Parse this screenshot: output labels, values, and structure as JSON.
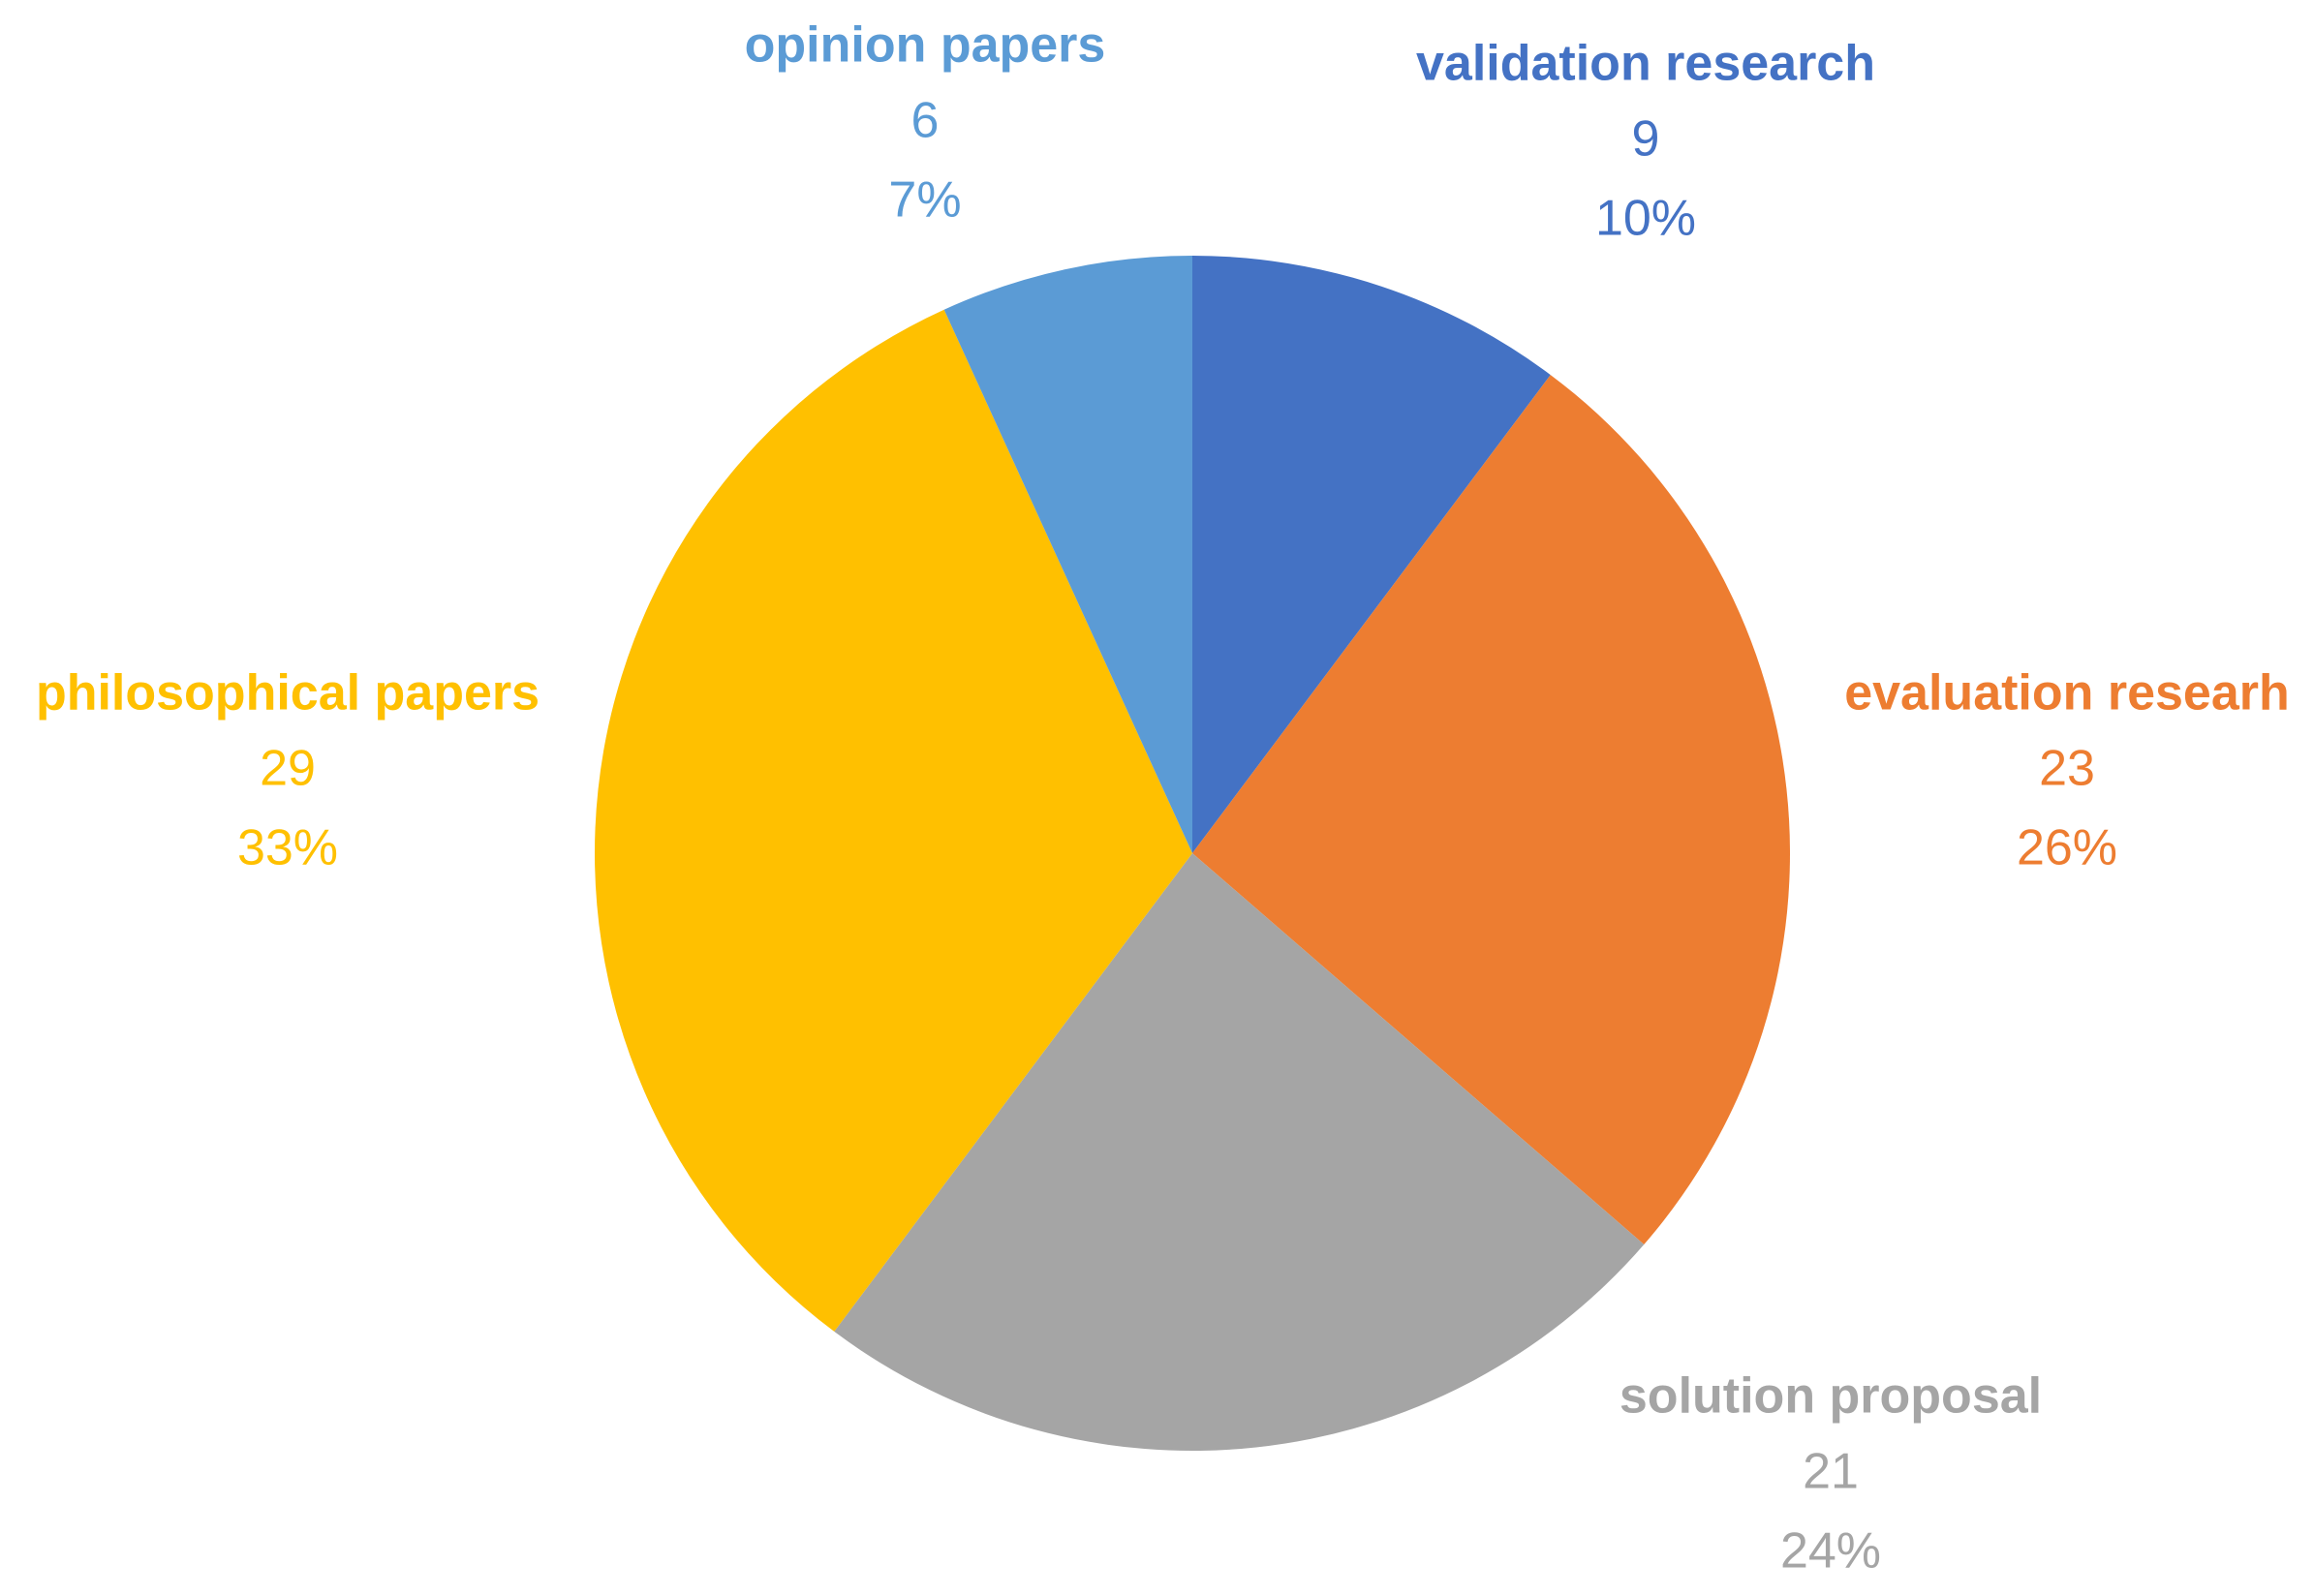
{
  "chart_data": {
    "type": "pie",
    "categories": [
      "validation research",
      "evaluation researh",
      "solution proposal",
      "philosophical papers",
      "opinion papers"
    ],
    "values": [
      9,
      23,
      21,
      29,
      6
    ],
    "percent_labels": [
      "10%",
      "26%",
      "24%",
      "33%",
      "7%"
    ],
    "colors": [
      "#4472c4",
      "#ed7d31",
      "#a5a5a5",
      "#ffc000",
      "#5b9bd5"
    ]
  }
}
